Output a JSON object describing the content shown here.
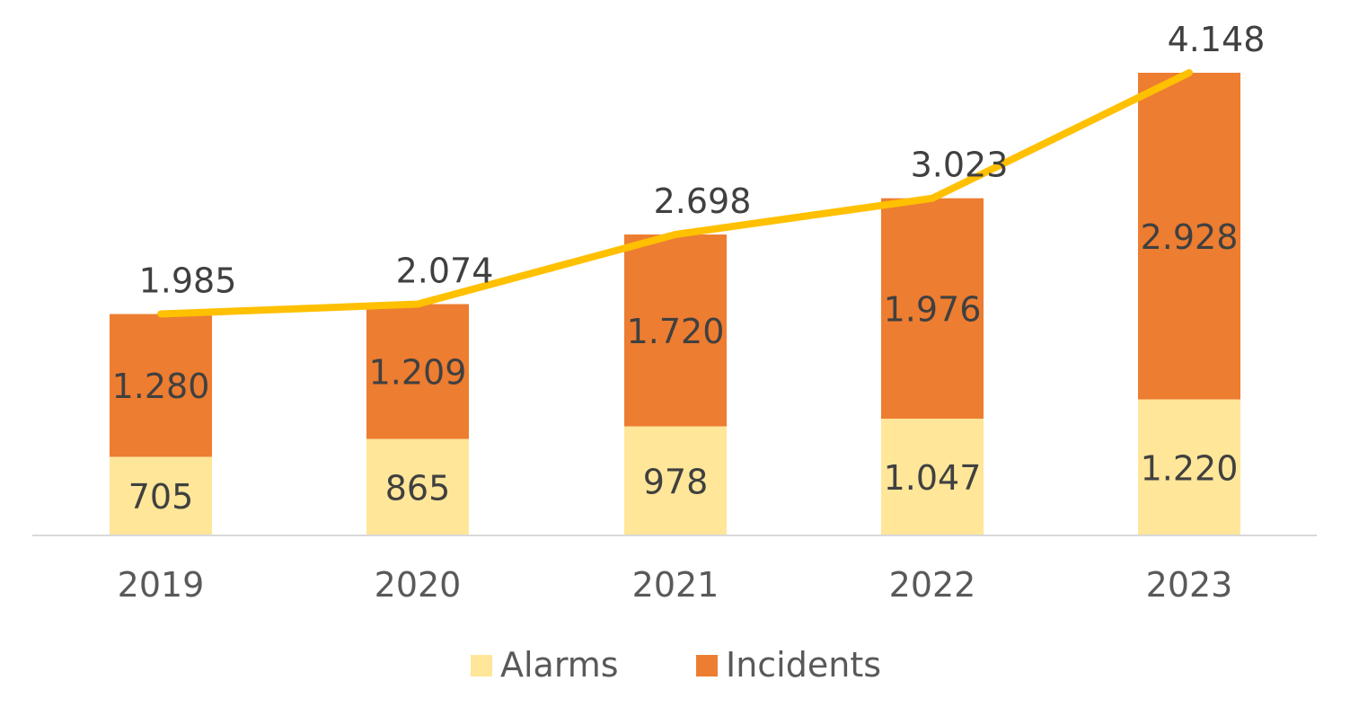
{
  "chart_data": {
    "type": "bar",
    "stacked": true,
    "categories": [
      "2019",
      "2020",
      "2021",
      "2022",
      "2023"
    ],
    "series": [
      {
        "name": "Alarms",
        "color": "#FFE699",
        "values": [
          705,
          865,
          978,
          1047,
          1220
        ],
        "labels": [
          "705",
          "865",
          "978",
          "1.047",
          "1.220"
        ]
      },
      {
        "name": "Incidents",
        "color": "#ED7D31",
        "values": [
          1280,
          1209,
          1720,
          1976,
          2928
        ],
        "labels": [
          "1.280",
          "1.209",
          "1.720",
          "1.976",
          "2.928"
        ]
      }
    ],
    "total_line": {
      "color": "#FFC000",
      "values": [
        1985,
        2074,
        2698,
        3023,
        4148
      ],
      "labels": [
        "1.985",
        "2.074",
        "2.698",
        "3.023",
        "4.148"
      ]
    },
    "ylim": [
      0,
      4148
    ],
    "grid": false,
    "legend_position": "bottom",
    "axis_color": "#D9D9D9"
  }
}
